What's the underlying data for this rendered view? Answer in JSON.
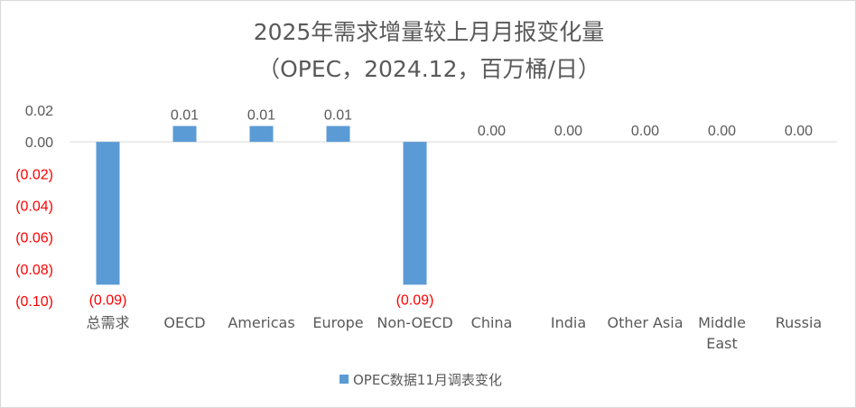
{
  "chart_data": {
    "type": "bar",
    "title": "2025年需求增量较上月月报变化量",
    "subtitle": "（OPEC，2024.12，百万桶/日）",
    "categories": [
      "总需求",
      "OECD",
      "Americas",
      "Europe",
      "Non-OECD",
      "China",
      "India",
      "Other Asia",
      "Middle East",
      "Russia"
    ],
    "category_lines": [
      [
        "总需求"
      ],
      [
        "OECD"
      ],
      [
        "Americas"
      ],
      [
        "Europe"
      ],
      [
        "Non-OECD"
      ],
      [
        "China"
      ],
      [
        "India"
      ],
      [
        "Other Asia"
      ],
      [
        "Middle",
        "East"
      ],
      [
        "Russia"
      ]
    ],
    "series": [
      {
        "name": "OPEC数据11月调表变化",
        "values": [
          -0.09,
          0.01,
          0.01,
          0.01,
          -0.09,
          0.0,
          0.0,
          0.0,
          0.0,
          0.0
        ],
        "data_labels": [
          "(0.09)",
          "0.01",
          "0.01",
          "0.01",
          "(0.09)",
          "0.00",
          "0.00",
          "0.00",
          "0.00",
          "0.00"
        ]
      }
    ],
    "ylim": [
      -0.1,
      0.02
    ],
    "yticks": [
      0.02,
      0.0,
      -0.02,
      -0.04,
      -0.06,
      -0.08,
      -0.1
    ],
    "ytick_labels": [
      "0.02",
      "0.00",
      "(0.02)",
      "(0.04)",
      "(0.06)",
      "(0.08)",
      "(0.10)"
    ],
    "xlabel": "",
    "ylabel": "",
    "grid": false,
    "legend": "bottom",
    "colors": {
      "bar": "#5B9BD5",
      "negative_text": "#FF0000",
      "text": "#595959",
      "axis": "#D9D9D9"
    }
  }
}
